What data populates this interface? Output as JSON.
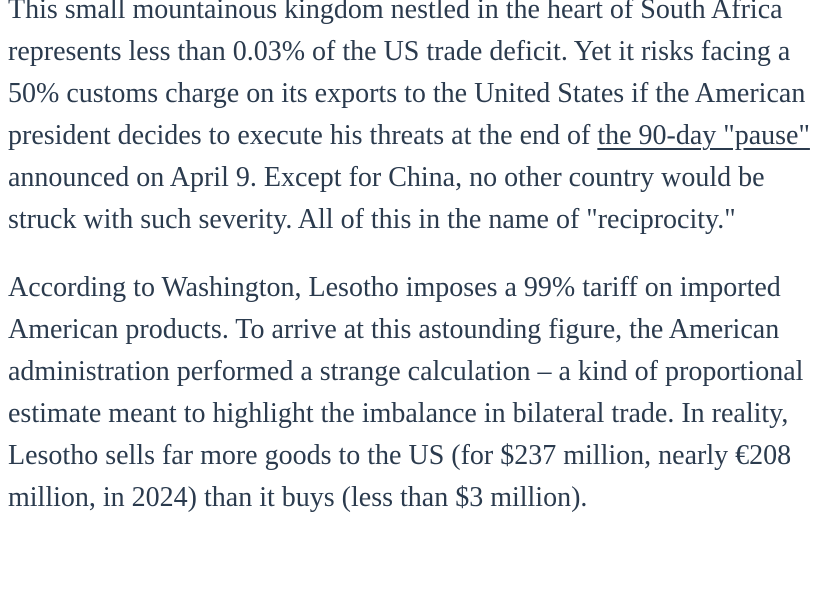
{
  "colors": {
    "background": "#ffffff",
    "text": "#2b3b4e",
    "link": "#2b3b4e"
  },
  "article": {
    "paragraph1": {
      "before_link": "This small mountainous kingdom nestled in the heart of South Africa represents less than 0.03% of the US trade deficit. Yet it risks facing a 50% customs charge on its exports to the United States if the American president decides to execute his threats at the end of ",
      "link_text": "the 90-day \"pause\"",
      "after_link": " announced on April 9. Except for China, no other country would be struck with such severity. All of this in the name of \"reciprocity.\""
    },
    "paragraph2": "According to Washington, Lesotho imposes a 99% tariff on imported American products. To arrive at this astounding figure, the American administration performed a strange calculation – a kind of proportional estimate meant to highlight the imbalance in bilateral trade. In reality, Lesotho sells far more goods to the US (for $237 million, nearly €208 million, in 2024) than it buys (less than $3 million)."
  }
}
